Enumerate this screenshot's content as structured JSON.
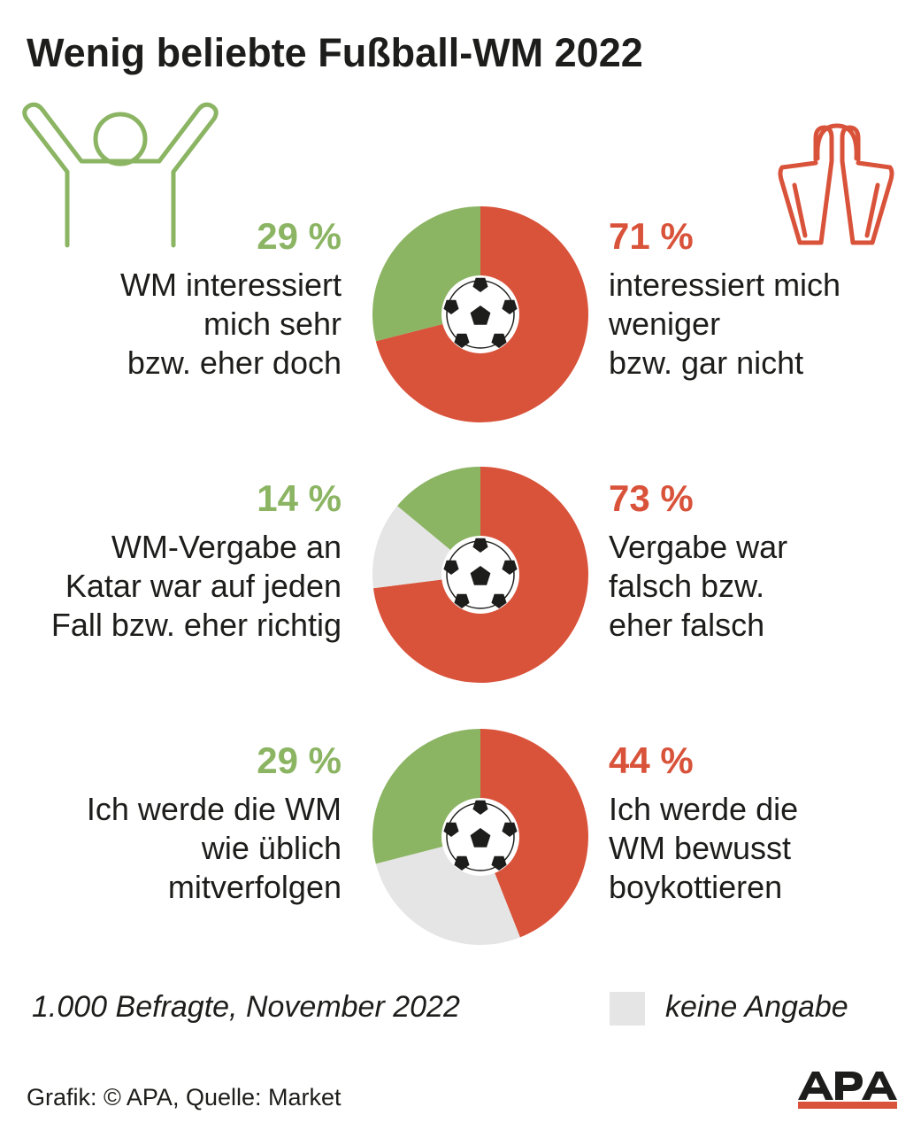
{
  "title": "Wenig beliebte Fußball-WM 2022",
  "colors": {
    "positive": "#8bb463",
    "negative": "#d9523a",
    "no_answer": "#e5e5e5"
  },
  "icons": {
    "positive": "cheering-person-icon",
    "negative": "despairing-person-icon",
    "ball": "football-icon"
  },
  "chart_data": [
    {
      "type": "pie",
      "slices": [
        {
          "name": "WM interessiert mich sehr bzw. eher doch",
          "value": 29,
          "color": "#8bb463"
        },
        {
          "name": "interessiert mich weniger bzw. gar nicht",
          "value": 71,
          "color": "#d9523a"
        }
      ],
      "left_label": {
        "value": "29 %",
        "text": "WM interessiert\nmich sehr\nbzw. eher doch"
      },
      "right_label": {
        "value": "71 %",
        "text": "interessiert mich\nweniger\nbzw. gar nicht"
      }
    },
    {
      "type": "pie",
      "slices": [
        {
          "name": "WM-Vergabe an Katar war auf jeden Fall bzw. eher richtig",
          "value": 14,
          "color": "#8bb463"
        },
        {
          "name": "keine Angabe",
          "value": 13,
          "color": "#e5e5e5"
        },
        {
          "name": "Vergabe war falsch bzw. eher falsch",
          "value": 73,
          "color": "#d9523a"
        }
      ],
      "left_label": {
        "value": "14 %",
        "text": "WM-Vergabe an\nKatar war auf jeden\nFall bzw. eher richtig"
      },
      "right_label": {
        "value": "73 %",
        "text": "Vergabe war\nfalsch bzw.\neher falsch"
      }
    },
    {
      "type": "pie",
      "slices": [
        {
          "name": "Ich werde die WM wie üblich mitverfolgen",
          "value": 29,
          "color": "#8bb463"
        },
        {
          "name": "keine Angabe",
          "value": 27,
          "color": "#e5e5e5"
        },
        {
          "name": "Ich werde die WM bewusst boykottieren",
          "value": 44,
          "color": "#d9523a"
        }
      ],
      "left_label": {
        "value": "29 %",
        "text": "Ich werde die WM\nwie üblich\nmitverfolgen"
      },
      "right_label": {
        "value": "44 %",
        "text": "Ich werde die\nWM bewusst\nboykottieren"
      }
    }
  ],
  "footnote": "1.000 Befragte, November 2022",
  "legend": {
    "label": "keine Angabe"
  },
  "credit": "Grafik: © APA, Quelle: Market",
  "logo": "APA"
}
